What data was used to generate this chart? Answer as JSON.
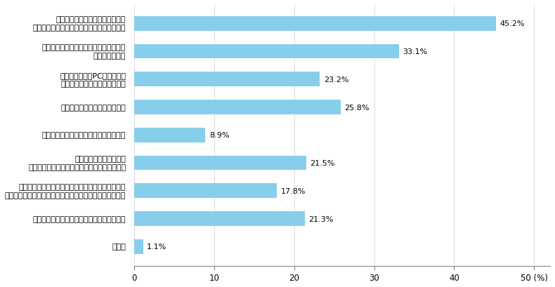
{
  "categories": [
    "その他",
    "自宅だとオン・オフの切り替えが難しいから",
    "自宅だと仕事に支障が生じる（業務効率低下等）、\n勤務時間が長くなる等、勤務状況が厳しくなりそうだから",
    "外出するきっかけがなく\n自宅にこもりがちとなり、健康に良くないから",
    "日頃買い物等で外出する必要があるから",
    "自宅だと家族に気冈ねするから",
    "自宅だとノートPCの購入や、\n電話代等自己負担が生じるから",
    "自宅だとセキュリティ（情報漏洩等）に\n不安があるため",
    "仕事環境（執務部屋、机・椅子、\nインターネット利用環境等）が良くないから"
  ],
  "values": [
    1.1,
    21.3,
    17.8,
    21.5,
    8.9,
    25.8,
    23.2,
    33.1,
    45.2
  ],
  "bar_color": "#87CEEB",
  "value_labels": [
    "1.1%",
    "21.3%",
    "17.8%",
    "21.5%",
    "8.9%",
    "25.8%",
    "23.2%",
    "33.1%",
    "45.2%"
  ],
  "xlim": [
    0,
    52
  ],
  "xticks": [
    0,
    10,
    20,
    30,
    40,
    50
  ],
  "xtick_labels": [
    "0",
    "10",
    "20",
    "30",
    "40",
    "50 (%)"
  ],
  "background_color": "#ffffff",
  "bar_height": 0.52,
  "label_fontsize": 8.0,
  "value_fontsize": 8.0,
  "tick_fontsize": 8.5,
  "grid_color": "#cccccc",
  "spine_color": "#888888"
}
